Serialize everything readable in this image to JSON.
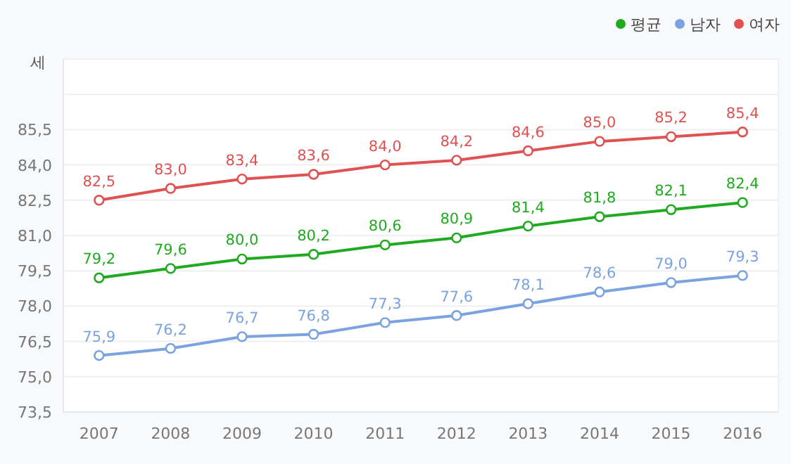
{
  "chart_data": {
    "type": "line",
    "ylabel": "세",
    "categories": [
      "2007",
      "2008",
      "2009",
      "2010",
      "2011",
      "2012",
      "2013",
      "2014",
      "2015",
      "2016"
    ],
    "series": [
      {
        "name": "평균",
        "color": "#1faa1f",
        "values": [
          79.2,
          79.6,
          80.0,
          80.2,
          80.6,
          80.9,
          81.4,
          81.8,
          82.1,
          82.4
        ],
        "value_labels": [
          "79,2",
          "79,6",
          "80,0",
          "80,2",
          "80,6",
          "80,9",
          "81,4",
          "81,8",
          "82,1",
          "82,4"
        ]
      },
      {
        "name": "남자",
        "color": "#7ba3e0",
        "values": [
          75.9,
          76.2,
          76.7,
          76.8,
          77.3,
          77.6,
          78.1,
          78.6,
          79.0,
          79.3
        ],
        "value_labels": [
          "75,9",
          "76,2",
          "76,7",
          "76,8",
          "77,3",
          "77,6",
          "78,1",
          "78,6",
          "79,0",
          "79,3"
        ]
      },
      {
        "name": "여자",
        "color": "#e05252",
        "values": [
          82.5,
          83.0,
          83.4,
          83.6,
          84.0,
          84.2,
          84.6,
          85.0,
          85.2,
          85.4
        ],
        "value_labels": [
          "82,5",
          "83,0",
          "83,4",
          "83,6",
          "84,0",
          "84,2",
          "84,6",
          "85,0",
          "85,2",
          "85,4"
        ]
      }
    ],
    "ylim": [
      73.5,
      88.5
    ],
    "yticks": [
      {
        "value": 73.5,
        "label": "73,5"
      },
      {
        "value": 75.0,
        "label": "75,0"
      },
      {
        "value": 76.5,
        "label": "76,5"
      },
      {
        "value": 78.0,
        "label": "78,0"
      },
      {
        "value": 79.5,
        "label": "79,5"
      },
      {
        "value": 81.0,
        "label": "81,0"
      },
      {
        "value": 82.5,
        "label": "82,5"
      },
      {
        "value": 84.0,
        "label": "84,0"
      },
      {
        "value": 85.5,
        "label": "85,5"
      },
      {
        "value": 87.0,
        "label": null
      },
      {
        "value": 88.5,
        "label": null
      }
    ],
    "grid": "y",
    "legend": "top right",
    "marker": "circle",
    "line_style": "solid"
  }
}
